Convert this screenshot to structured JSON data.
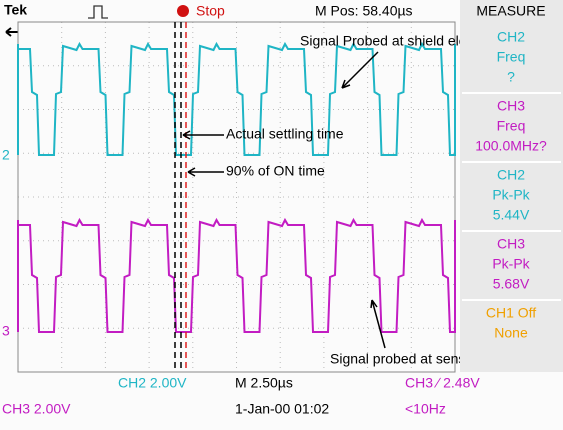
{
  "header": {
    "brand": "Tek",
    "status": "Stop",
    "position": "M Pos: 58.40µs",
    "panel_title": "MEASURE"
  },
  "measurements": [
    {
      "channel": "CH2",
      "kind": "Freq",
      "value": "?"
    },
    {
      "channel": "CH3",
      "kind": "Freq",
      "value": "100.0MHz?"
    },
    {
      "channel": "CH2",
      "kind": "Pk-Pk",
      "value": "5.44V"
    },
    {
      "channel": "CH3",
      "kind": "Pk-Pk",
      "value": "5.68V"
    },
    {
      "channel": "CH1 Off",
      "kind": "None",
      "value": ""
    }
  ],
  "channel_markers": [
    "2",
    "3"
  ],
  "footer": {
    "row1": [
      "CH2  2.00V",
      "M 2.50µs",
      "CH3 ∕ 2.48V"
    ],
    "row2": [
      "CH3  2.00V",
      "1-Jan-00 01:02",
      "<10Hz"
    ]
  },
  "annotations": {
    "shield": "Signal Probed at shield electrode",
    "settling": "Actual settling time",
    "ontime": "90% of ON time",
    "sensor": "Signal probed at sensor"
  }
}
